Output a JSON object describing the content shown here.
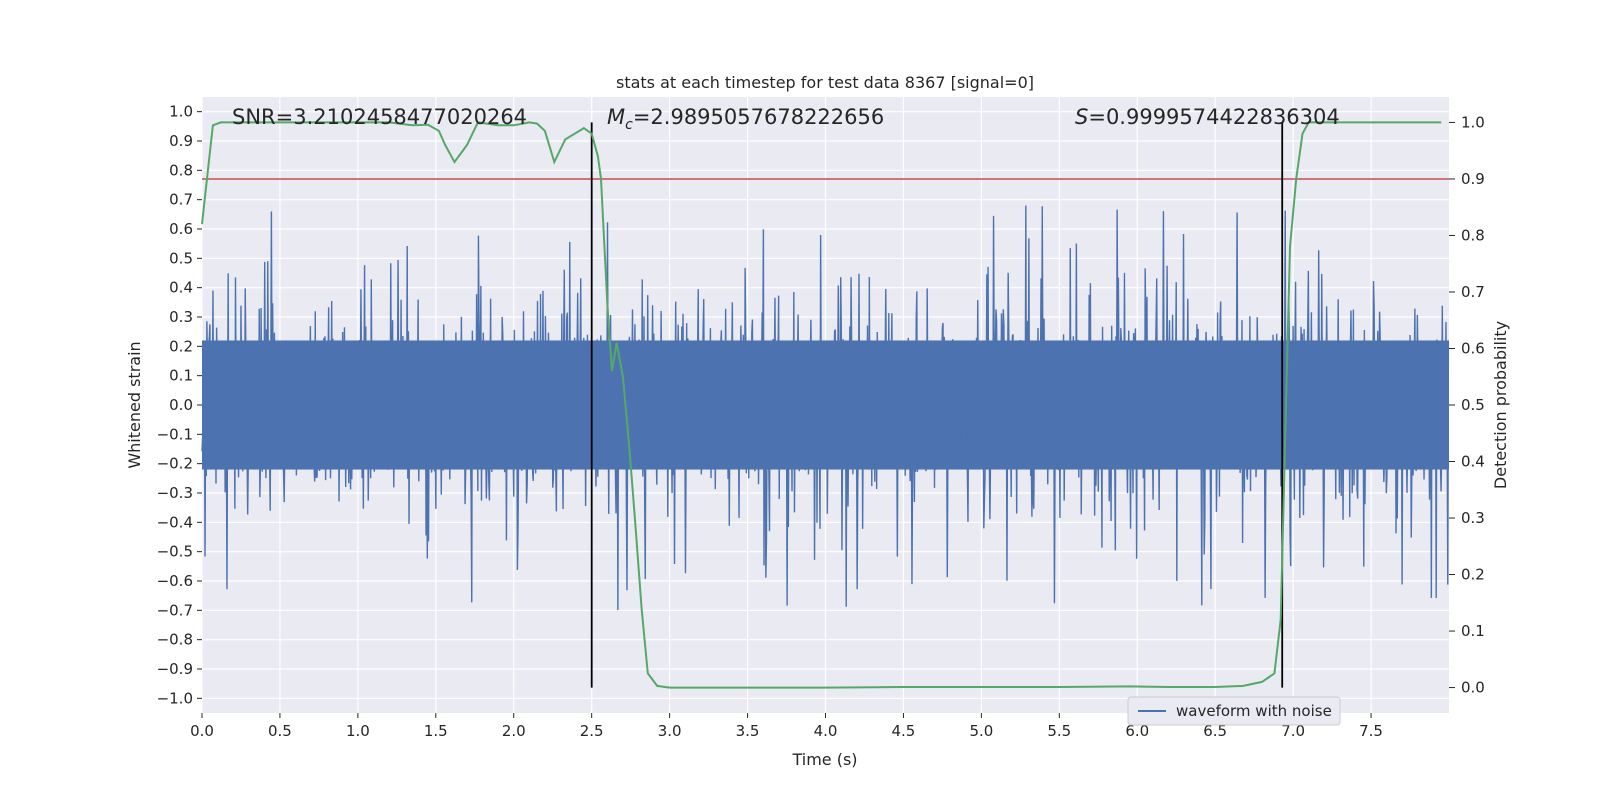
{
  "chart_data": {
    "type": "line",
    "title": "stats at each timestep for test data 8367 [signal=0]",
    "xlabel": "Time (s)",
    "ylabel": "Whitened strain",
    "y2label": "Detection probability",
    "xlim": [
      0.0,
      8.0
    ],
    "ylim": [
      -1.05,
      1.05
    ],
    "y2lim": [
      -0.045,
      1.045
    ],
    "x_ticks": [
      0.0,
      0.5,
      1.0,
      1.5,
      2.0,
      2.5,
      3.0,
      3.5,
      4.0,
      4.5,
      5.0,
      5.5,
      6.0,
      6.5,
      7.0,
      7.5
    ],
    "x_tick_labels": [
      "0.0",
      "0.5",
      "1.0",
      "1.5",
      "2.0",
      "2.5",
      "3.0",
      "3.5",
      "4.0",
      "4.5",
      "5.0",
      "5.5",
      "6.0",
      "6.5",
      "7.0",
      "7.5"
    ],
    "y_ticks": [
      1.0,
      0.9,
      0.8,
      0.7,
      0.6,
      0.5,
      0.4,
      0.3,
      0.2,
      0.1,
      0.0,
      -0.1,
      -0.2,
      -0.3,
      -0.4,
      -0.5,
      -0.6,
      -0.7,
      -0.8,
      -0.9,
      -1.0
    ],
    "y_tick_labels": [
      "1.0",
      "0.9",
      "0.8",
      "0.7",
      "0.6",
      "0.5",
      "0.4",
      "0.3",
      "0.2",
      "0.1",
      "0.0",
      "−0.1",
      "−0.2",
      "−0.3",
      "−0.4",
      "−0.5",
      "−0.6",
      "−0.7",
      "−0.8",
      "−0.9",
      "−1.0"
    ],
    "y2_ticks": [
      1.0,
      0.9,
      0.8,
      0.7,
      0.6,
      0.5,
      0.4,
      0.3,
      0.2,
      0.1,
      0.0
    ],
    "y2_tick_labels": [
      "1.0",
      "0.9",
      "0.8",
      "0.7",
      "0.6",
      "0.5",
      "0.4",
      "0.3",
      "0.2",
      "0.1",
      "0.0"
    ],
    "grid": true,
    "legend": {
      "entries": [
        "waveform with noise"
      ],
      "placement": "lower-right"
    },
    "annotations": {
      "snr": "SNR=3.2102458477020264",
      "mc_symbol": "M",
      "mc_sub": "c",
      "mc_value": "=2.9895057678222656",
      "s_symbol": "S",
      "s_value": "=0.9999574422836304"
    },
    "threshold": {
      "value": 0.9,
      "axis": "y2",
      "color": "#c44e52"
    },
    "vlines": [
      2.5,
      6.93
    ],
    "waveform": {
      "name": "waveform with noise",
      "color": "#4c72b0",
      "duration": 8.0,
      "samples": 2048,
      "core_amplitude": 0.22
    },
    "probability": {
      "color": "#55a868",
      "x": [
        0.0,
        0.04,
        0.07,
        0.12,
        0.3,
        0.6,
        0.9,
        1.2,
        1.35,
        1.45,
        1.52,
        1.56,
        1.62,
        1.7,
        1.77,
        1.9,
        2.0,
        2.1,
        2.15,
        2.2,
        2.26,
        2.33,
        2.45,
        2.5,
        2.54,
        2.56,
        2.6,
        2.63,
        2.66,
        2.7,
        2.74,
        2.78,
        2.82,
        2.86,
        2.92,
        3.0,
        3.2,
        3.5,
        4.0,
        4.5,
        5.0,
        5.5,
        5.95,
        6.2,
        6.5,
        6.68,
        6.8,
        6.88,
        6.92,
        6.95,
        6.98,
        7.02,
        7.06,
        7.1,
        7.3,
        7.6,
        7.95
      ],
      "y": [
        0.82,
        0.92,
        0.995,
        1.0,
        1.0,
        1.0,
        1.0,
        1.0,
        0.995,
        0.996,
        0.985,
        0.96,
        0.93,
        0.96,
        1.0,
        0.995,
        0.995,
        1.0,
        0.998,
        0.985,
        0.93,
        0.97,
        0.99,
        0.98,
        0.94,
        0.9,
        0.68,
        0.56,
        0.61,
        0.55,
        0.43,
        0.29,
        0.14,
        0.025,
        0.003,
        0.0,
        0.0,
        0.0,
        0.0,
        0.001,
        0.001,
        0.001,
        0.002,
        0.001,
        0.001,
        0.003,
        0.01,
        0.025,
        0.12,
        0.45,
        0.78,
        0.9,
        0.98,
        1.0,
        1.0,
        1.0,
        1.0
      ]
    }
  }
}
